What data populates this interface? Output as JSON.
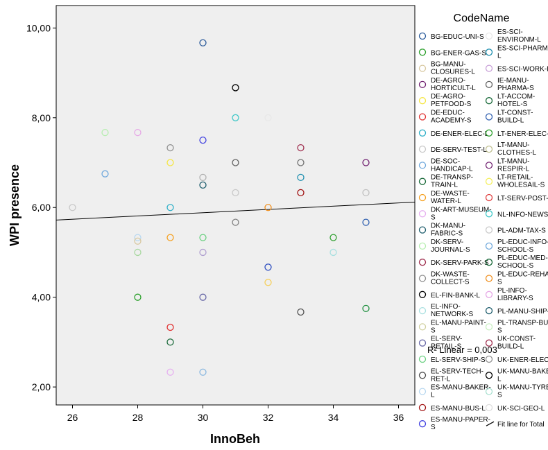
{
  "chart_data": {
    "type": "scatter",
    "xlabel": "InnoBeh",
    "ylabel": "WPI presence",
    "xlim": [
      25.5,
      36.5
    ],
    "ylim": [
      1.6,
      10.5
    ],
    "x_ticks": [
      "26",
      "28",
      "30",
      "32",
      "34",
      "36"
    ],
    "x_tick_values": [
      26,
      28,
      30,
      32,
      34,
      36
    ],
    "y_ticks": [
      "2,00",
      "4,00",
      "6,00",
      "8,00",
      "10,00"
    ],
    "y_tick_values": [
      2,
      4,
      6,
      8,
      10
    ],
    "legend_title": "CodeName",
    "fit_line": {
      "label": "Fit line for Total",
      "x": [
        25.5,
        36.5
      ],
      "y": [
        5.72,
        6.12
      ],
      "annotation": "R² Linear = 0,003"
    },
    "points": [
      {
        "x": 26,
        "y": 6.0,
        "color": "#c8c8c8"
      },
      {
        "x": 27,
        "y": 6.75,
        "color": "#6fa8dc"
      },
      {
        "x": 27,
        "y": 7.67,
        "color": "#b6eeb0"
      },
      {
        "x": 28,
        "y": 7.67,
        "color": "#e6a8e6"
      },
      {
        "x": 28,
        "y": 5.33,
        "color": "#b8d8f0"
      },
      {
        "x": 28,
        "y": 5.25,
        "color": "#d8c8a0"
      },
      {
        "x": 28,
        "y": 5.0,
        "color": "#a8d8a0"
      },
      {
        "x": 28,
        "y": 4.0,
        "color": "#2ca02c"
      },
      {
        "x": 29,
        "y": 7.33,
        "color": "#909090"
      },
      {
        "x": 29,
        "y": 7.0,
        "color": "#f5e642"
      },
      {
        "x": 29,
        "y": 6.0,
        "color": "#30b0c8"
      },
      {
        "x": 29,
        "y": 5.33,
        "color": "#f5a020"
      },
      {
        "x": 29,
        "y": 3.33,
        "color": "#e03030"
      },
      {
        "x": 29,
        "y": 3.0,
        "color": "#1a6a3a"
      },
      {
        "x": 29,
        "y": 2.33,
        "color": "#e6b0f0"
      },
      {
        "x": 30,
        "y": 9.67,
        "color": "#2a5a9a"
      },
      {
        "x": 30,
        "y": 7.5,
        "color": "#4040e0"
      },
      {
        "x": 30,
        "y": 6.67,
        "color": "#b0b0b0"
      },
      {
        "x": 30,
        "y": 6.5,
        "color": "#1a5a6a"
      },
      {
        "x": 30,
        "y": 5.33,
        "color": "#6ad080"
      },
      {
        "x": 30,
        "y": 5.0,
        "color": "#b0a0d0"
      },
      {
        "x": 30,
        "y": 4.0,
        "color": "#6a6aa8"
      },
      {
        "x": 30,
        "y": 2.33,
        "color": "#8ab8e0"
      },
      {
        "x": 31,
        "y": 8.67,
        "color": "#000000"
      },
      {
        "x": 31,
        "y": 8.0,
        "color": "#40c8c8"
      },
      {
        "x": 31,
        "y": 7.0,
        "color": "#606060"
      },
      {
        "x": 31,
        "y": 6.33,
        "color": "#c8c8c8"
      },
      {
        "x": 31,
        "y": 5.67,
        "color": "#808080"
      },
      {
        "x": 32,
        "y": 8.0,
        "color": "#e8e8e8"
      },
      {
        "x": 32,
        "y": 6.0,
        "color": "#f09020"
      },
      {
        "x": 32,
        "y": 4.67,
        "color": "#3050c0"
      },
      {
        "x": 32,
        "y": 4.33,
        "color": "#f5d060"
      },
      {
        "x": 33,
        "y": 7.33,
        "color": "#a03050"
      },
      {
        "x": 33,
        "y": 7.0,
        "color": "#707070"
      },
      {
        "x": 33,
        "y": 6.67,
        "color": "#2090b0"
      },
      {
        "x": 33,
        "y": 6.33,
        "color": "#a01010"
      },
      {
        "x": 33,
        "y": 3.67,
        "color": "#505050"
      },
      {
        "x": 34,
        "y": 5.33,
        "color": "#30a030"
      },
      {
        "x": 34,
        "y": 5.0,
        "color": "#a8e0e0"
      },
      {
        "x": 35,
        "y": 7.0,
        "color": "#702070"
      },
      {
        "x": 35,
        "y": 6.33,
        "color": "#c0c0c0"
      },
      {
        "x": 35,
        "y": 5.67,
        "color": "#3060b0"
      },
      {
        "x": 35,
        "y": 3.75,
        "color": "#209040"
      }
    ],
    "legend": [
      {
        "label": "BG-EDUC-UNI-S",
        "color": "#2a5a9a"
      },
      {
        "label": "BG-ENER-GAS-S",
        "color": "#2ca02c"
      },
      {
        "label": "BG-MANU-CLOSURES-L",
        "color": "#d8c8a0"
      },
      {
        "label": "DE-AGRO-HORTICULT-L",
        "color": "#702070"
      },
      {
        "label": "DE-AGRO-PETFOOD-S",
        "color": "#f5e642"
      },
      {
        "label": "DE-EDUC-ACADEMY-S",
        "color": "#e03030"
      },
      {
        "label": "DE-ENER-ELEC-L",
        "color": "#30b0c8"
      },
      {
        "label": "DE-SERV-TEST-L",
        "color": "#c8c8c8"
      },
      {
        "label": "DE-SOC-HANDICAP-L",
        "color": "#6fa8dc"
      },
      {
        "label": "DE-TRANSP-TRAIN-L",
        "color": "#1a6a3a"
      },
      {
        "label": "DE-WASTE-WATER-L",
        "color": "#f5a020"
      },
      {
        "label": "DK-ART-MUSEUM-S",
        "color": "#e6b0f0"
      },
      {
        "label": "DK-MANU-FABRIC-S",
        "color": "#1a5a6a"
      },
      {
        "label": "DK-SERV-JOURNAL-S",
        "color": "#b6eeb0"
      },
      {
        "label": "DK-SERV-PARK-S",
        "color": "#a03050"
      },
      {
        "label": "DK-WASTE-COLLECT-S",
        "color": "#909090"
      },
      {
        "label": "EL-FIN-BANK-L",
        "color": "#000000"
      },
      {
        "label": "EL-INFO-NETWORK-S",
        "color": "#a8e0e0"
      },
      {
        "label": "EL-MANU-PAINT-S",
        "color": "#d0d0a0"
      },
      {
        "label": "EL-SERV-RETAIL-S",
        "color": "#6a6aa8"
      },
      {
        "label": "EL-SERV-SHIP-S",
        "color": "#6ad080"
      },
      {
        "label": "EL-SERV-TECH-RET-L",
        "color": "#505050"
      },
      {
        "label": "ES-MANU-BAKER-L",
        "color": "#b8d8f0"
      },
      {
        "label": "ES-MANU-BUS-L",
        "color": "#a01010"
      },
      {
        "label": "ES-MANU-PAPER-S",
        "color": "#4040e0"
      },
      {
        "label": "ES-SCI-ENVIRONM-L",
        "color": "#e8e8e8"
      },
      {
        "label": "ES-SCI-PHARMA-L",
        "color": "#2090b0"
      },
      {
        "label": "ES-SCI-WORK-L",
        "color": "#c8a0d8"
      },
      {
        "label": "IE-MANU-PHARMA-S",
        "color": "#606060"
      },
      {
        "label": "LT-ACCOM-HOTEL-S",
        "color": "#1a6a3a"
      },
      {
        "label": "LT-CONST-BUILD-L",
        "color": "#3060b0"
      },
      {
        "label": "LT-ENER-ELEC-L",
        "color": "#30a030"
      },
      {
        "label": "LT-MANU-CLOTHES-L",
        "color": "#c0c090"
      },
      {
        "label": "LT-MANU-RESPIR-L",
        "color": "#702070"
      },
      {
        "label": "LT-RETAIL-WHOLESAIL-S",
        "color": "#f5f060"
      },
      {
        "label": "LT-SERV-POST-L",
        "color": "#e04040"
      },
      {
        "label": "NL-INFO-NEWS-L",
        "color": "#40c8c8"
      },
      {
        "label": "PL-ADM-TAX-S",
        "color": "#c8c8c8"
      },
      {
        "label": "PL-EDUC-INFO-SCHOOL-S",
        "color": "#6fa8dc"
      },
      {
        "label": "PL-EDUC-MED-SCHOOL-S",
        "color": "#1a6a3a"
      },
      {
        "label": "PL-EDUC-REHAB-S",
        "color": "#f09020"
      },
      {
        "label": "PL-INFO-LIBRARY-S",
        "color": "#e6a8e6"
      },
      {
        "label": "PL-MANU-SHIP-S",
        "color": "#1a5a6a"
      },
      {
        "label": "PL-TRANSP-BUS-S",
        "color": "#c8f0c0"
      },
      {
        "label": "UK-CONST-BUILD-L",
        "color": "#a03050"
      },
      {
        "label": "UK-ENER-ELEC-L",
        "color": "#909090"
      },
      {
        "label": "UK-MANU-BAKER-L",
        "color": "#000000"
      },
      {
        "label": "UK-MANU-TYRES-S",
        "color": "#a8e0d0"
      },
      {
        "label": "UK-SCI-GEO-L",
        "color": "#ffffff"
      },
      {
        "label": "Fit line for Total",
        "color": "#000000",
        "line": true
      }
    ]
  }
}
